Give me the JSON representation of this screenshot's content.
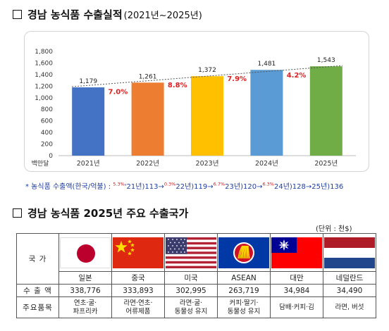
{
  "section1": {
    "title": "경남 농식품 수출실적",
    "subtitle": "(2021년~2025년)"
  },
  "chart_data": {
    "type": "bar",
    "categories": [
      "2021년",
      "2022년",
      "2023년",
      "2024년",
      "2025년"
    ],
    "values": [
      1179,
      1261,
      1372,
      1481,
      1543
    ],
    "value_labels": [
      "1,179",
      "1,261",
      "1,372",
      "1,481",
      "1,543"
    ],
    "growth_labels": [
      "7.0%",
      "8.8%",
      "7.9%",
      "4.2%"
    ],
    "bar_colors": [
      "#4472c4",
      "#ed7d31",
      "#ffc000",
      "#5b9bd5",
      "#70ad47"
    ],
    "ylim": [
      0,
      1800
    ],
    "yticks": [
      "0",
      "200",
      "400",
      "600",
      "800",
      "1,000",
      "1,200",
      "1,400",
      "1,600",
      "1,800"
    ],
    "yunit": "백만달",
    "trendline": "dashed"
  },
  "note": {
    "prefix": "* 농식품 수출액(한국/억불) : ",
    "segments": [
      {
        "text": "'21년)113→",
        "sup": "5.3%"
      },
      {
        "text": "22년)119→",
        "sup": "0.3%"
      },
      {
        "text": "23년)120→",
        "sup": "6.7%"
      },
      {
        "text": "24년)128→",
        "sup": "6.3%"
      },
      {
        "text": "25년)136",
        "sup": ""
      }
    ]
  },
  "section2": {
    "title": "경남 농식품 2025년 주요 수출국가",
    "unit": "(단위 : 천$)"
  },
  "table": {
    "row_headers": {
      "country": "국 가",
      "amount": "수 출 액",
      "items": "주요품목"
    },
    "countries": [
      {
        "name": "일본",
        "flag": "japan-flag-icon",
        "amount": "338,776",
        "items": [
          "연초·굴·",
          "파프리카"
        ]
      },
      {
        "name": "중국",
        "flag": "china-flag-icon",
        "amount": "333,893",
        "items": [
          "라면·연초·",
          "어류제품"
        ]
      },
      {
        "name": "미국",
        "flag": "usa-flag-icon",
        "amount": "302,995",
        "items": [
          "라면·굴·",
          "동물성 유지"
        ]
      },
      {
        "name": "ASEAN",
        "flag": "asean-flag-icon",
        "amount": "263,719",
        "items": [
          "커피·딸기·",
          "동물성 유지"
        ]
      },
      {
        "name": "대만",
        "flag": "taiwan-flag-icon",
        "amount": "34,984",
        "items": [
          "담배·커피·김"
        ]
      },
      {
        "name": "네덜란드",
        "flag": "netherlands-flag-icon",
        "amount": "34,490",
        "items": [
          "라면, 버섯"
        ]
      }
    ]
  }
}
